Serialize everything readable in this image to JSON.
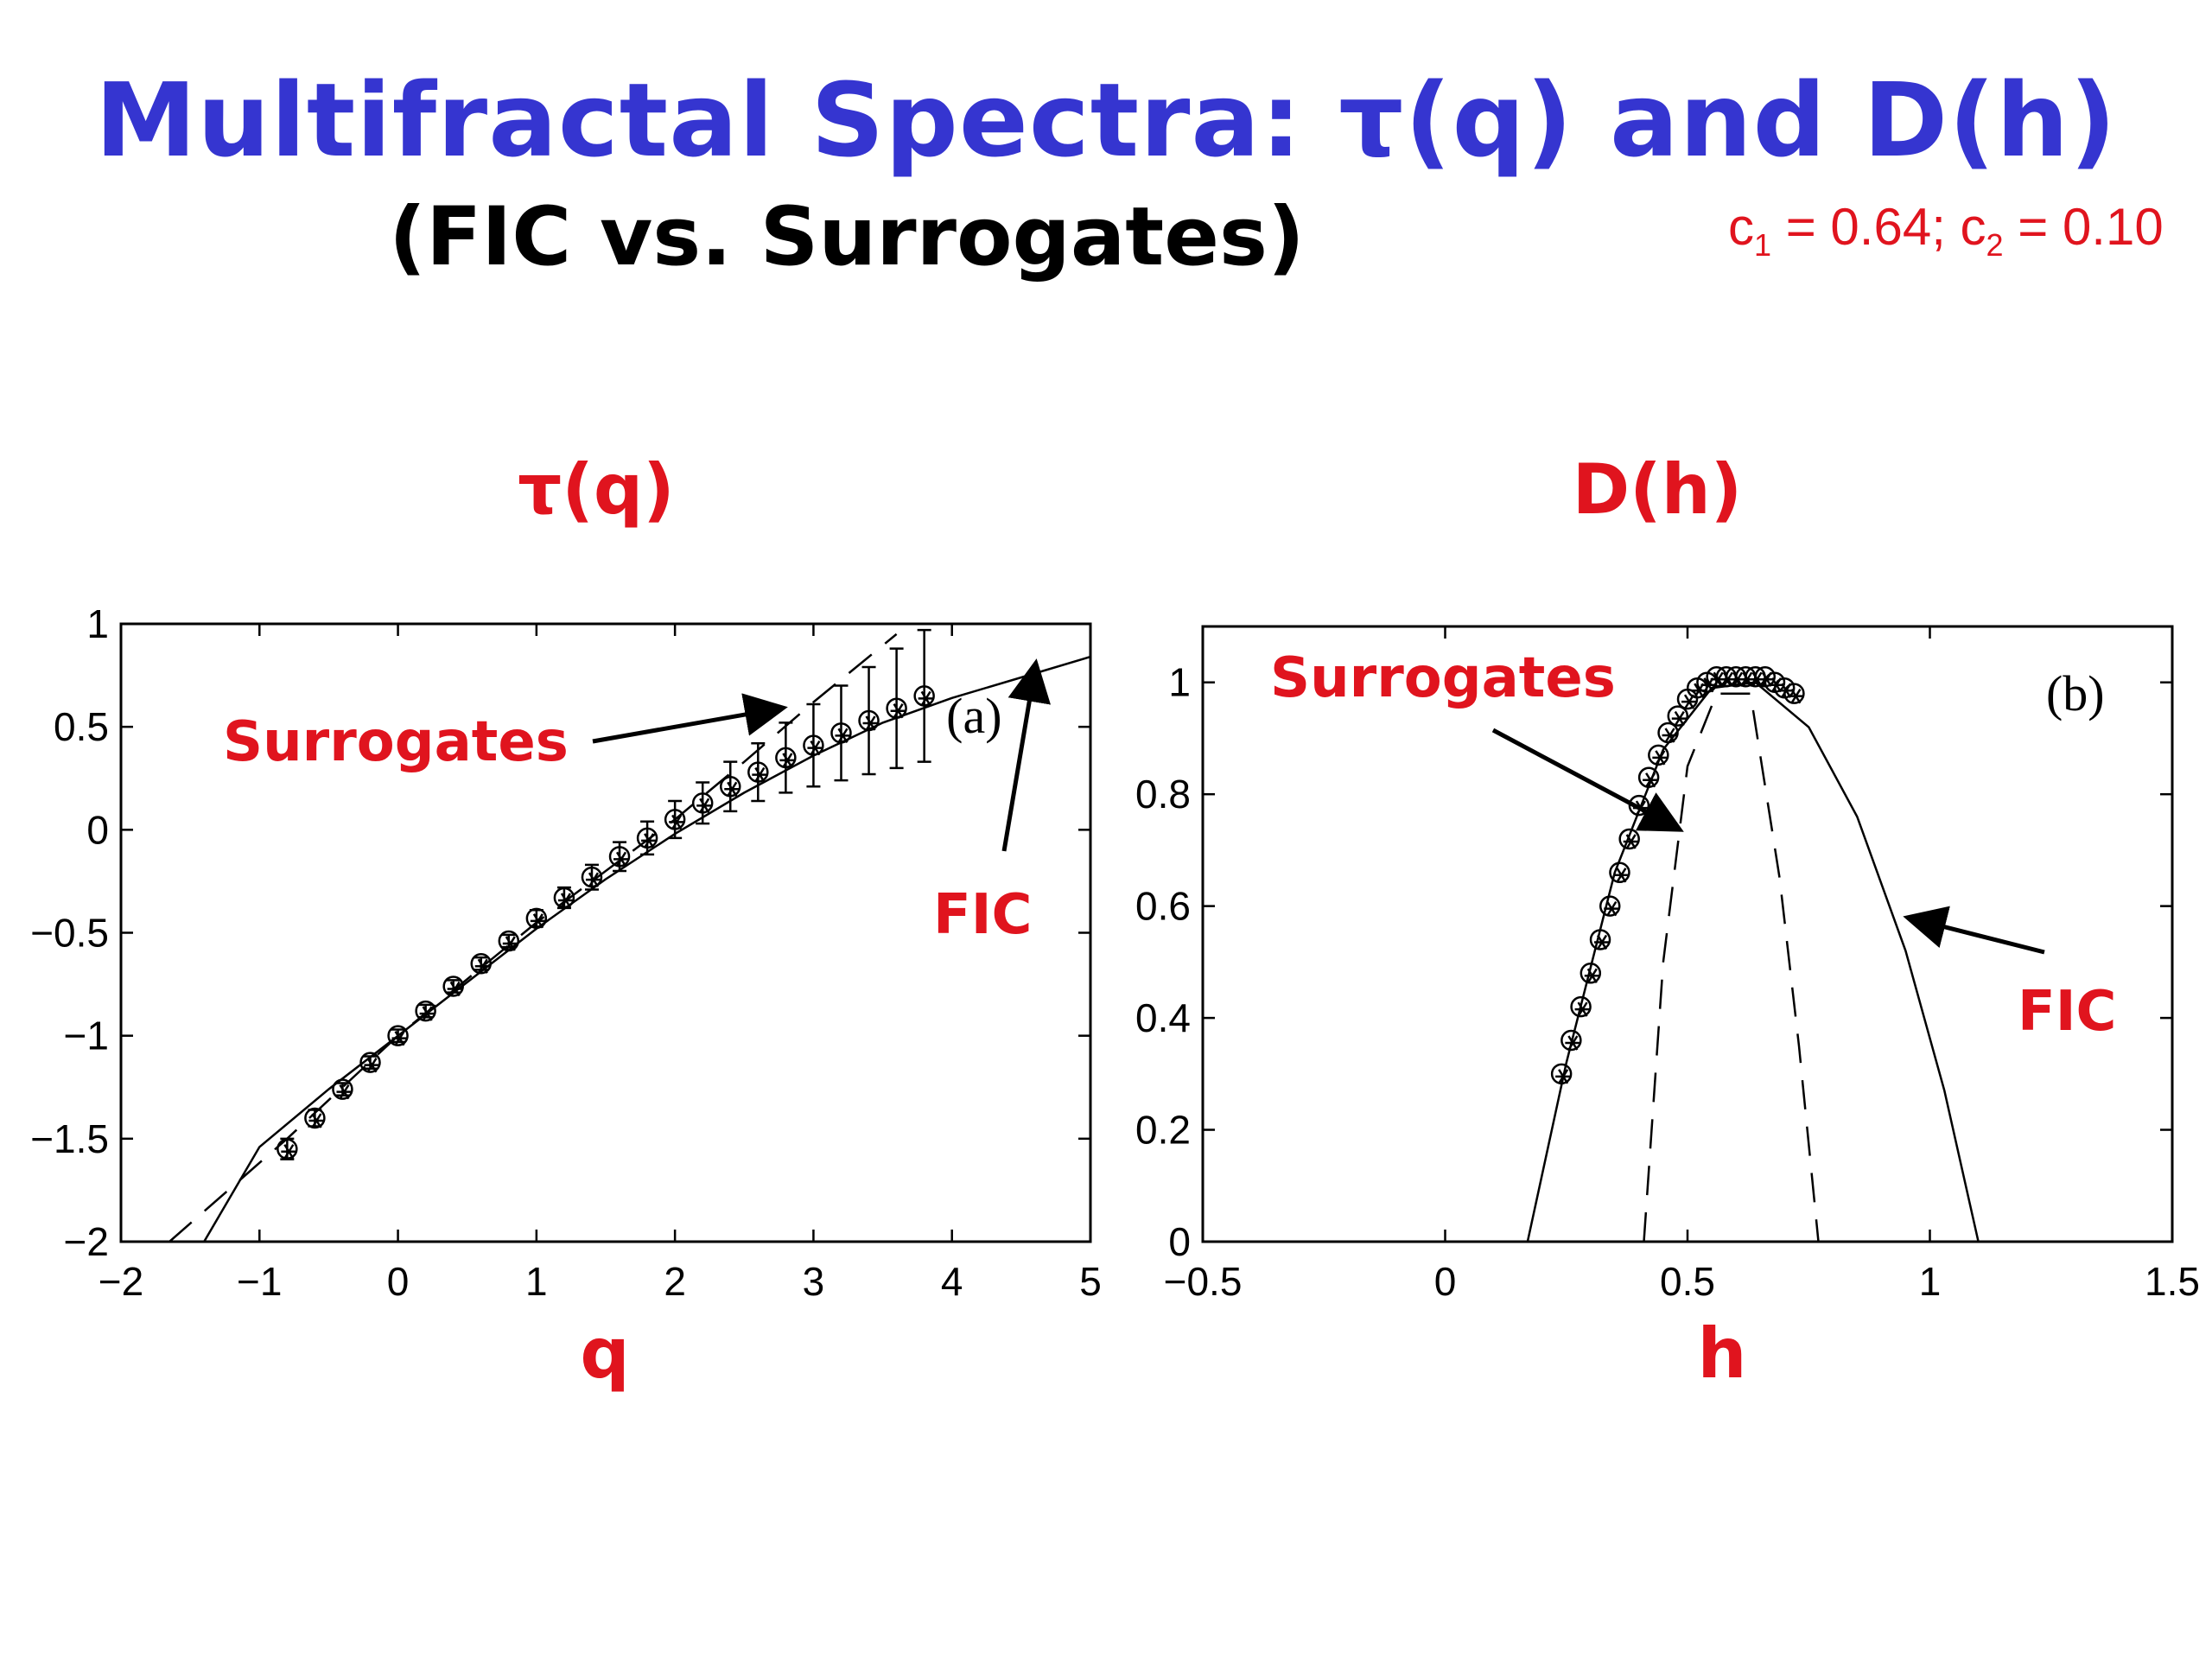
{
  "slide": {
    "title": "Multifractal Spectra: τ(q) and D(h)",
    "subtitle": "(FIC vs. Surrogates)",
    "params": {
      "c1_label": "c",
      "c1_sub": "1",
      "c1_value": " = 0.64; ",
      "c2_label": "c",
      "c2_sub": "2",
      "c2_value": " = 0.10"
    }
  },
  "colors": {
    "title": "#3535d0",
    "accent": "#e0141e",
    "ink": "#000000"
  },
  "chart_data": [
    {
      "type": "line",
      "title": "τ(q)",
      "xlabel": "q",
      "ylabel": "",
      "panel_tag": "(a)",
      "xlim": [
        -2,
        5
      ],
      "ylim": [
        -2,
        1
      ],
      "xticks": [
        "−2",
        "−1",
        "0",
        "1",
        "2",
        "3",
        "4",
        "5"
      ],
      "yticks": [
        "−2",
        "−1.5",
        "−1",
        "−0.5",
        "0",
        "0.5",
        "1"
      ],
      "annotations": [
        "Surrogates",
        "FIC"
      ],
      "series": [
        {
          "style": "solid",
          "x": [
            -1.4,
            -1,
            -0.5,
            0,
            0.5,
            1,
            1.5,
            2,
            2.5,
            3,
            3.5,
            4,
            4.5,
            5
          ],
          "y": [
            -2.0,
            -1.54,
            -1.26,
            -1.0,
            -0.74,
            -0.48,
            -0.24,
            -0.02,
            0.18,
            0.36,
            0.52,
            0.64,
            0.74,
            0.84
          ]
        },
        {
          "style": "dashed",
          "x": [
            -1.65,
            -0.8,
            0,
            1,
            2,
            2.5,
            3,
            3.6
          ],
          "y": [
            -2.0,
            -1.5,
            -1.0,
            -0.45,
            0.05,
            0.33,
            0.62,
            0.95
          ]
        },
        {
          "style": "markers",
          "x": [
            -0.8,
            -0.6,
            -0.4,
            -0.2,
            0,
            0.2,
            0.4,
            0.6,
            0.8,
            1.0,
            1.2,
            1.4,
            1.6,
            1.8,
            2.0,
            2.2,
            2.4,
            2.6,
            2.8,
            3.0,
            3.2,
            3.4,
            3.6,
            3.8
          ],
          "y": [
            -1.55,
            -1.4,
            -1.26,
            -1.13,
            -1.0,
            -0.88,
            -0.76,
            -0.65,
            -0.54,
            -0.43,
            -0.33,
            -0.23,
            -0.13,
            -0.04,
            0.05,
            0.13,
            0.21,
            0.28,
            0.35,
            0.41,
            0.47,
            0.53,
            0.59,
            0.65
          ],
          "err": [
            0.05,
            0.04,
            0.03,
            0.03,
            0.03,
            0.03,
            0.03,
            0.03,
            0.03,
            0.04,
            0.05,
            0.06,
            0.07,
            0.08,
            0.09,
            0.1,
            0.12,
            0.14,
            0.17,
            0.2,
            0.23,
            0.26,
            0.29,
            0.32
          ]
        }
      ]
    },
    {
      "type": "line",
      "title": "D(h)",
      "xlabel": "h",
      "ylabel": "",
      "panel_tag": "(b)",
      "xlim": [
        -0.5,
        1.5
      ],
      "ylim": [
        0,
        1.1
      ],
      "xticks": [
        "−0.5",
        "0",
        "0.5",
        "1",
        "1.5"
      ],
      "yticks": [
        "0",
        "0.2",
        "0.4",
        "0.6",
        "0.8",
        "1"
      ],
      "annotations": [
        "Surrogates",
        "FIC"
      ],
      "series": [
        {
          "style": "solid",
          "x": [
            0.17,
            0.25,
            0.35,
            0.45,
            0.55,
            0.64,
            0.75,
            0.85,
            0.95,
            1.03,
            1.1
          ],
          "y": [
            0.0,
            0.32,
            0.66,
            0.88,
            0.99,
            1.0,
            0.92,
            0.76,
            0.52,
            0.27,
            0.0
          ]
        },
        {
          "style": "dashed",
          "x": [
            0.41,
            0.45,
            0.5,
            0.56,
            0.63,
            0.69,
            0.73,
            0.77
          ],
          "y": [
            0.0,
            0.5,
            0.85,
            0.98,
            0.98,
            0.65,
            0.35,
            0.0
          ]
        },
        {
          "style": "markers",
          "x": [
            0.24,
            0.26,
            0.28,
            0.3,
            0.32,
            0.34,
            0.36,
            0.38,
            0.4,
            0.42,
            0.44,
            0.46,
            0.48,
            0.5,
            0.52,
            0.54,
            0.56,
            0.58,
            0.6,
            0.62,
            0.64,
            0.66,
            0.68,
            0.7,
            0.72
          ],
          "y": [
            0.3,
            0.36,
            0.42,
            0.48,
            0.54,
            0.6,
            0.66,
            0.72,
            0.78,
            0.83,
            0.87,
            0.91,
            0.94,
            0.97,
            0.99,
            1.0,
            1.01,
            1.01,
            1.01,
            1.01,
            1.01,
            1.01,
            1.0,
            0.99,
            0.98
          ]
        }
      ]
    }
  ]
}
